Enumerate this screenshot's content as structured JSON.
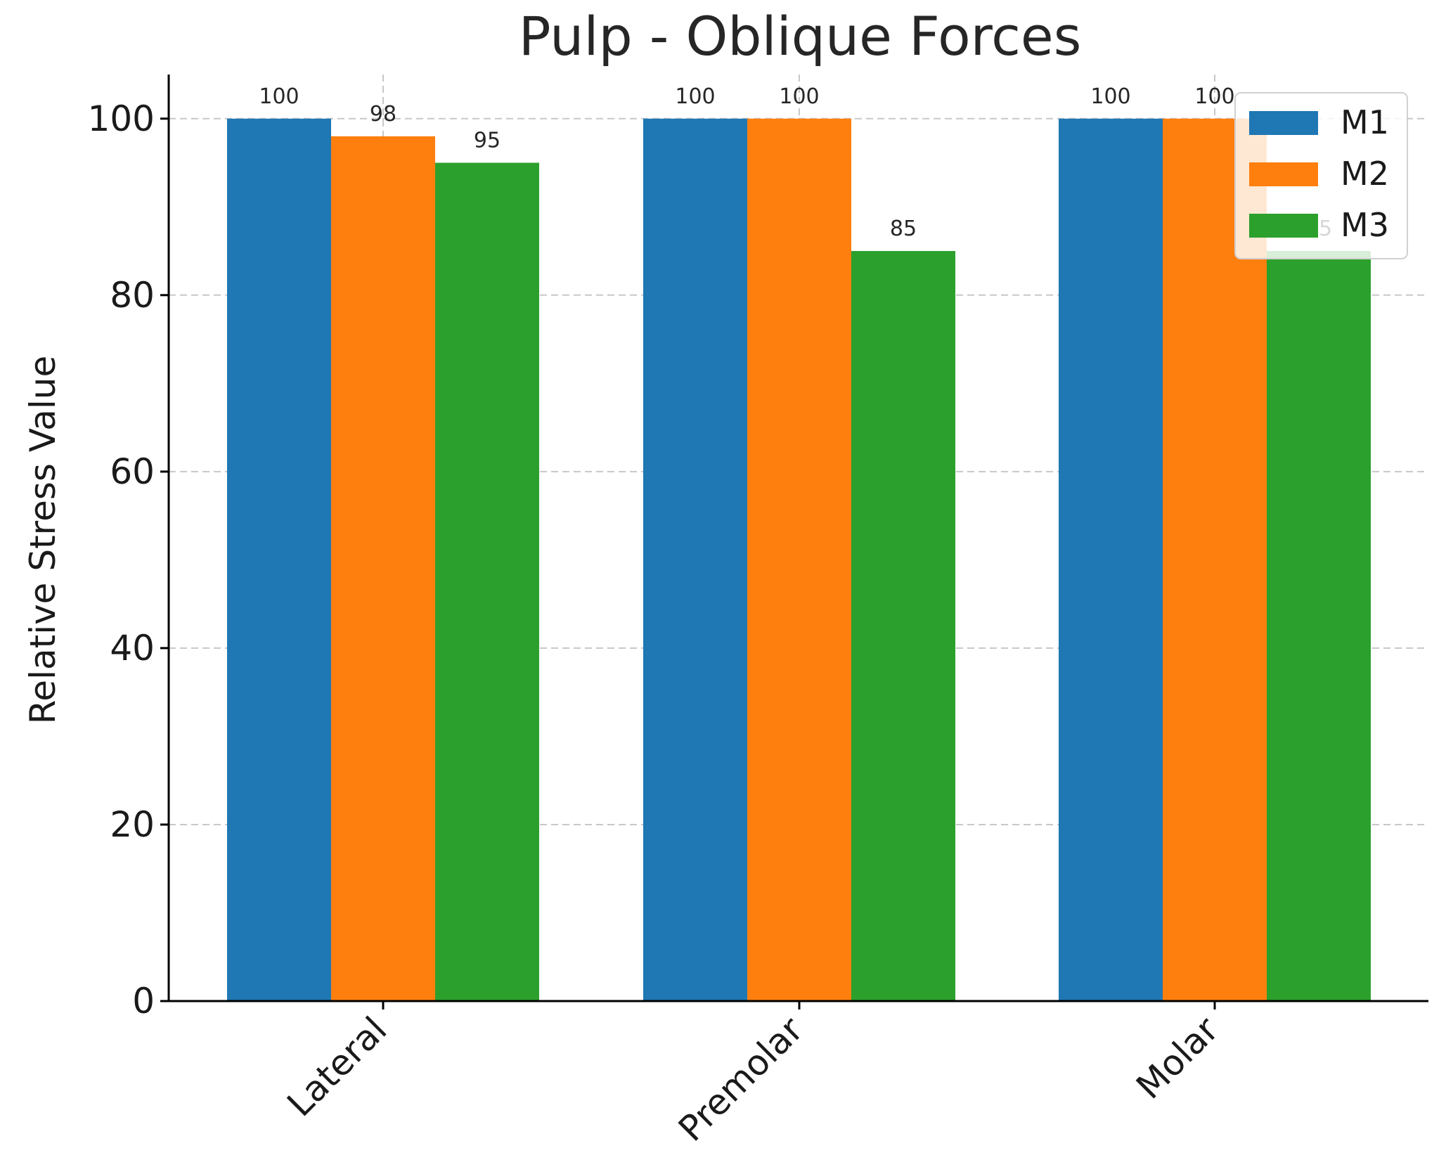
{
  "chart_data": {
    "type": "bar",
    "title": "Pulp - Oblique Forces",
    "xlabel": "",
    "ylabel": "Relative Stress Value",
    "categories": [
      "Lateral",
      "Premolar",
      "Molar"
    ],
    "series": [
      {
        "name": "M1",
        "color": "#1f77b4",
        "values": [
          100,
          100,
          100
        ]
      },
      {
        "name": "M2",
        "color": "#ff7f0e",
        "values": [
          98,
          100,
          100
        ]
      },
      {
        "name": "M3",
        "color": "#2ca02c",
        "values": [
          95,
          85,
          85
        ]
      }
    ],
    "ylim": [
      0,
      105
    ],
    "yticks": [
      0,
      20,
      40,
      60,
      80,
      100
    ],
    "grid": true,
    "legend_position": "top-right"
  }
}
